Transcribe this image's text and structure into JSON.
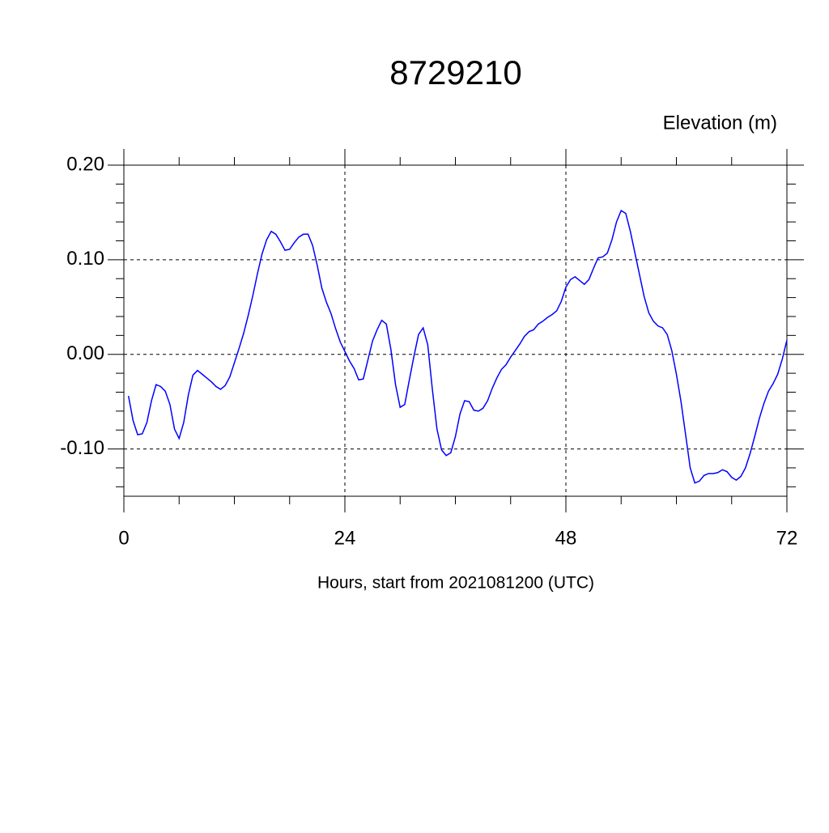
{
  "chart_data": {
    "type": "line",
    "title": "8729210",
    "ylabel": "Elevation (m)",
    "xlabel": "Hours, start from 2021081200 (UTC)",
    "x": [
      0.5,
      1,
      1.5,
      2,
      2.5,
      3,
      3.5,
      4,
      4.5,
      5,
      5.5,
      6,
      6.5,
      7,
      7.5,
      8,
      8.5,
      9,
      9.5,
      10,
      10.5,
      11,
      11.5,
      12,
      12.5,
      13,
      13.5,
      14,
      14.5,
      15,
      15.5,
      16,
      16.5,
      17,
      17.5,
      18,
      18.5,
      19,
      19.5,
      20,
      20.5,
      21,
      21.5,
      22,
      22.5,
      23,
      23.5,
      24,
      24.5,
      25,
      25.5,
      26,
      26.5,
      27,
      27.5,
      28,
      28.5,
      29,
      29.5,
      30,
      30.5,
      31,
      31.5,
      32,
      32.5,
      33,
      33.5,
      34,
      34.5,
      35,
      35.5,
      36,
      36.5,
      37,
      37.5,
      38,
      38.5,
      39,
      39.5,
      40,
      40.5,
      41,
      41.5,
      42,
      42.5,
      43,
      43.5,
      44,
      44.5,
      45,
      45.5,
      46,
      46.5,
      47,
      47.5,
      48,
      48.5,
      49,
      49.5,
      50,
      50.5,
      51,
      51.5,
      52,
      52.5,
      53,
      53.5,
      54,
      54.5,
      55,
      55.5,
      56,
      56.5,
      57,
      57.5,
      58,
      58.5,
      59,
      59.5,
      60,
      60.5,
      61,
      61.5,
      62,
      62.5,
      63,
      63.5,
      64,
      64.5,
      65,
      65.5,
      66,
      66.5,
      67,
      67.5,
      68,
      68.5,
      69,
      69.5,
      70,
      70.5,
      71,
      71.5,
      72
    ],
    "series": [
      {
        "name": "Elevation",
        "color": "#0000ff",
        "values": [
          -0.044,
          -0.07,
          -0.085,
          -0.084,
          -0.072,
          -0.049,
          -0.032,
          -0.034,
          -0.039,
          -0.053,
          -0.079,
          -0.089,
          -0.072,
          -0.043,
          -0.022,
          -0.017,
          -0.021,
          -0.025,
          -0.029,
          -0.034,
          -0.037,
          -0.033,
          -0.024,
          -0.009,
          0.006,
          0.022,
          0.041,
          0.062,
          0.085,
          0.106,
          0.121,
          0.13,
          0.127,
          0.119,
          0.11,
          0.111,
          0.118,
          0.124,
          0.127,
          0.127,
          0.115,
          0.094,
          0.07,
          0.055,
          0.043,
          0.027,
          0.013,
          0.003,
          -0.007,
          -0.015,
          -0.027,
          -0.026,
          -0.006,
          0.014,
          0.026,
          0.036,
          0.032,
          0.005,
          -0.032,
          -0.056,
          -0.053,
          -0.027,
          -0.002,
          0.021,
          0.028,
          0.01,
          -0.037,
          -0.079,
          -0.101,
          -0.107,
          -0.104,
          -0.087,
          -0.063,
          -0.049,
          -0.05,
          -0.059,
          -0.06,
          -0.057,
          -0.049,
          -0.036,
          -0.025,
          -0.016,
          -0.011,
          -0.003,
          0.004,
          0.011,
          0.019,
          0.024,
          0.026,
          0.032,
          0.035,
          0.039,
          0.042,
          0.046,
          0.056,
          0.071,
          0.079,
          0.082,
          0.078,
          0.074,
          0.079,
          0.091,
          0.102,
          0.103,
          0.107,
          0.121,
          0.14,
          0.152,
          0.149,
          0.13,
          0.107,
          0.084,
          0.061,
          0.044,
          0.035,
          0.03,
          0.028,
          0.021,
          0.004,
          -0.021,
          -0.05,
          -0.085,
          -0.12,
          -0.136,
          -0.134,
          -0.128,
          -0.126,
          -0.126,
          -0.125,
          -0.122,
          -0.124,
          -0.13,
          -0.133,
          -0.129,
          -0.12,
          -0.105,
          -0.087,
          -0.068,
          -0.052,
          -0.039,
          -0.031,
          -0.021,
          -0.005,
          0.015
        ]
      }
    ],
    "xlim": [
      0,
      72
    ],
    "xticks": [
      0,
      24,
      48,
      72
    ],
    "xminorticks": [
      6,
      12,
      18,
      30,
      36,
      42,
      54,
      60,
      66
    ],
    "ylim": [
      -0.15,
      0.2
    ],
    "yticks": [
      {
        "value": 0.2,
        "label": "0.20"
      },
      {
        "value": 0.1,
        "label": "0.10"
      },
      {
        "value": 0,
        "label": "0.00"
      },
      {
        "value": -0.1,
        "label": "-0.10"
      }
    ],
    "yminorticks": [
      -0.14,
      -0.12,
      -0.08,
      -0.06,
      -0.04,
      -0.02,
      0.02,
      0.04,
      0.06,
      0.08,
      0.12,
      0.14,
      0.16,
      0.18
    ],
    "grid": true
  }
}
